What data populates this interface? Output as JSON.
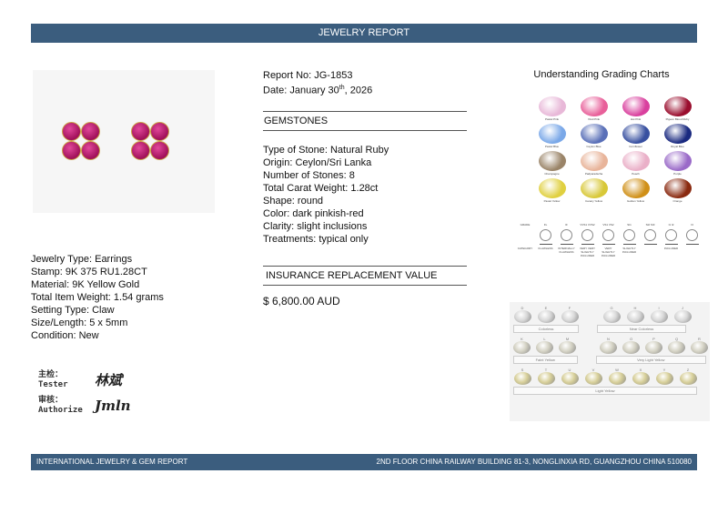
{
  "header": {
    "title": "JEWELRY REPORT"
  },
  "report": {
    "number": "Report No: JG-1853",
    "date_prefix": "Date: January 30",
    "date_sup": "th",
    "date_suffix": ", 2026"
  },
  "gemstones": {
    "heading": "GEMSTONES",
    "lines": [
      "Type of Stone: Natural Ruby",
      "Origin: Ceylon/Sri Lanka",
      "Number of Stones: 8",
      "Total Carat Weight: 1.28ct",
      "Shape: round",
      "Color: dark pinkish-red",
      "Clarity: slight inclusions",
      "Treatments: typical only"
    ]
  },
  "insurance": {
    "heading": "INSURANCE REPLACEMENT VALUE",
    "value": "$ 6,800.00  AUD"
  },
  "jewelry": {
    "lines": [
      "Jewelry Type: Earrings",
      "Stamp: 9K 375 RU1.28CT",
      "Material: 9K Yellow Gold",
      "Total Item Weight: 1.54 grams",
      "Setting Type: Claw",
      "Size/Length: 5 x 5mm",
      "Condition: New"
    ]
  },
  "signatures": {
    "tester_cn": "主检：",
    "tester": "Tester",
    "authorize_cn": "审核：",
    "authorize": "Authorize",
    "tester_sig": "林斌",
    "authorize_sig": "Jmln"
  },
  "grading": {
    "title": "Understanding Grading Charts",
    "gems": [
      {
        "name": "Pastel Pink",
        "color": "#e8b8d8"
      },
      {
        "name": "Vivid Pink",
        "color": "#e8609a"
      },
      {
        "name": "Hot Pink",
        "color": "#d9409e"
      },
      {
        "name": "Pigeon Blood Ruby",
        "color": "#9a0e2e"
      },
      {
        "name": "Pastel Blue",
        "color": "#7aa8e8"
      },
      {
        "name": "Ceylon Blue",
        "color": "#5a70b8"
      },
      {
        "name": "Cornflower",
        "color": "#3850a0"
      },
      {
        "name": "Royal Blue",
        "color": "#1a2a80"
      },
      {
        "name": "Champagne",
        "color": "#9a8468"
      },
      {
        "name": "Padparadscha",
        "color": "#e8b49a"
      },
      {
        "name": "Peach",
        "color": "#eab0c8"
      },
      {
        "name": "Purple",
        "color": "#9a6ac8"
      },
      {
        "name": "Pastel Yellow",
        "color": "#e0d040"
      },
      {
        "name": "Canary Yellow",
        "color": "#d8c838"
      },
      {
        "name": "Golden Yellow",
        "color": "#d09018"
      },
      {
        "name": "Orange",
        "color": "#8a2a10"
      }
    ],
    "clarity_label": "GRADE",
    "category_label": "CATEGORY",
    "clarity": [
      {
        "grade": "FL",
        "category": "FLAWLESS"
      },
      {
        "grade": "IF",
        "category": "INTERNALLY FLAWLESS"
      },
      {
        "grade": "VVS1 VVS2",
        "category": "VERY VERY SLIGHTLY INCLUDED"
      },
      {
        "grade": "VS1 VS2",
        "category": "VERY SLIGHTLY INCLUDED"
      },
      {
        "grade": "SI1",
        "category": "SLIGHTLY INCLUDED"
      },
      {
        "grade": "SI2 SI3",
        "category": ""
      },
      {
        "grade": "I1 I2",
        "category": "INCLUDED"
      },
      {
        "grade": "I3",
        "category": ""
      }
    ],
    "color_rows": [
      [
        "D",
        "E",
        "F",
        "G",
        "H",
        "I",
        "J"
      ],
      [
        "K",
        "L",
        "M",
        "N",
        "O",
        "P",
        "Q",
        "R"
      ],
      [
        "S",
        "T",
        "U",
        "V",
        "W",
        "X",
        "Y",
        "Z"
      ]
    ],
    "color_groups": [
      "Colorless",
      "Near Colorless",
      "Faint Yellow",
      "Very Light Yellow",
      "Light Yellow"
    ]
  },
  "footer": {
    "left": "INTERNATIONAL JEWELRY & GEM REPORT",
    "right": "2ND FLOOR CHINA RAILWAY BUILDING 81-3, NONGLINXIA RD, GUANGZHOU CHINA 510080"
  }
}
